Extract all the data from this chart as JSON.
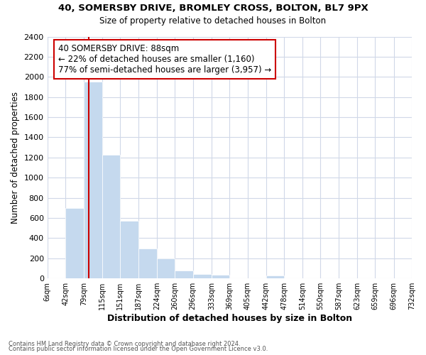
{
  "title1": "40, SOMERSBY DRIVE, BROMLEY CROSS, BOLTON, BL7 9PX",
  "title2": "Size of property relative to detached houses in Bolton",
  "xlabel": "Distribution of detached houses by size in Bolton",
  "ylabel": "Number of detached properties",
  "footnote1": "Contains HM Land Registry data © Crown copyright and database right 2024.",
  "footnote2": "Contains public sector information licensed under the Open Government Licence v3.0.",
  "annotation_line1": "40 SOMERSBY DRIVE: 88sqm",
  "annotation_line2": "← 22% of detached houses are smaller (1,160)",
  "annotation_line3": "77% of semi-detached houses are larger (3,957) →",
  "property_size": 88,
  "bar_edges": [
    6,
    42,
    79,
    115,
    151,
    187,
    224,
    260,
    296,
    333,
    369,
    405,
    442,
    478,
    514,
    550,
    587,
    623,
    659,
    696,
    732
  ],
  "bar_heights": [
    0,
    700,
    1950,
    1230,
    575,
    300,
    200,
    80,
    45,
    35,
    0,
    0,
    30,
    0,
    0,
    0,
    0,
    0,
    0,
    0
  ],
  "bar_color": "#c5d9ee",
  "vline_color": "#cc0000",
  "annotation_box_color": "#cc0000",
  "background_color": "#ffffff",
  "grid_color": "#d0d8e8",
  "ylim": [
    0,
    2400
  ],
  "yticks": [
    0,
    200,
    400,
    600,
    800,
    1000,
    1200,
    1400,
    1600,
    1800,
    2000,
    2200,
    2400
  ],
  "xtick_labels": [
    "6sqm",
    "42sqm",
    "79sqm",
    "115sqm",
    "151sqm",
    "187sqm",
    "224sqm",
    "260sqm",
    "296sqm",
    "333sqm",
    "369sqm",
    "405sqm",
    "442sqm",
    "478sqm",
    "514sqm",
    "550sqm",
    "587sqm",
    "623sqm",
    "659sqm",
    "696sqm",
    "732sqm"
  ]
}
